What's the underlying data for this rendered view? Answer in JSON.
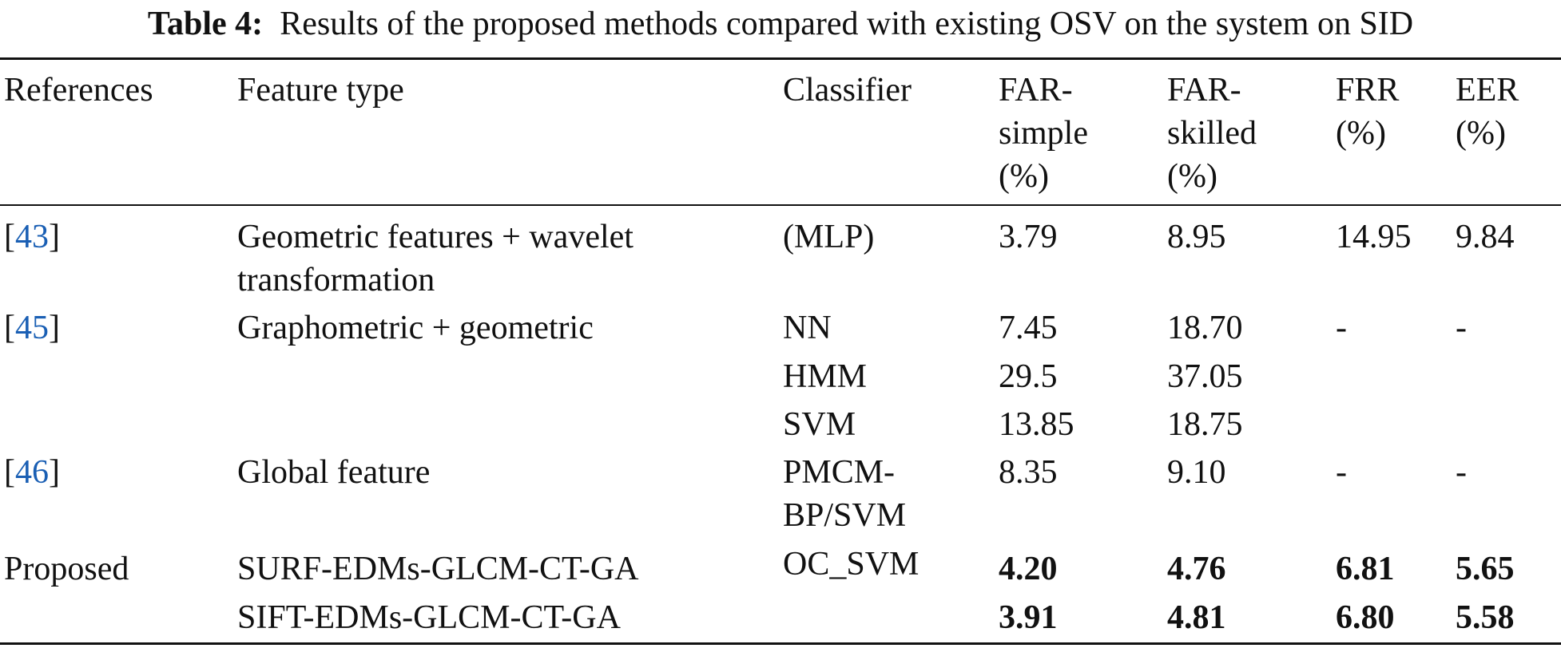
{
  "caption": {
    "label": "Table 4:",
    "text": "Results of the proposed methods compared with existing OSV on the system on SID"
  },
  "header": {
    "references": "References",
    "feature_type": "Feature type",
    "classifier": "Classifier",
    "far_simple": [
      "FAR-",
      "simple",
      "(%)"
    ],
    "far_skilled": [
      "FAR-",
      "skilled",
      "(%)"
    ],
    "frr": [
      "FRR",
      "(%)"
    ],
    "eer": [
      "EER",
      "(%)"
    ]
  },
  "rows": [
    {
      "ref": "43",
      "feature_type": [
        "Geometric features + wavelet",
        "transformation"
      ],
      "classifier": [
        "(MLP)"
      ],
      "far_simple": "3.79",
      "far_skilled": "8.95",
      "frr": "14.95",
      "eer": "9.84"
    },
    {
      "ref": "45",
      "feature_type": [
        "Graphometric + geometric"
      ],
      "classifier": [
        "NN"
      ],
      "far_simple": "7.45",
      "far_skilled": "18.70",
      "frr": "-",
      "eer": "-"
    },
    {
      "classifier": [
        "HMM"
      ],
      "far_simple": "29.5",
      "far_skilled": "37.05"
    },
    {
      "classifier": [
        "SVM"
      ],
      "far_simple": "13.85",
      "far_skilled": "18.75"
    },
    {
      "ref": "46",
      "feature_type": [
        "Global feature"
      ],
      "classifier": [
        "PMCM-",
        "BP/SVM"
      ],
      "far_simple": "8.35",
      "far_skilled": "9.10",
      "frr": "-",
      "eer": "-"
    },
    {
      "ref_text": "Proposed",
      "feature_type": [
        "SURF-EDMs-GLCM-CT-GA"
      ],
      "classifier": [
        "OC_SVM"
      ],
      "far_simple": "4.20",
      "far_skilled": "4.76",
      "frr": "6.81",
      "eer": "5.65"
    },
    {
      "feature_type": [
        "SIFT-EDMs-GLCM-CT-GA"
      ],
      "far_simple": "3.91",
      "far_skilled": "4.81",
      "frr": "6.80",
      "eer": "5.58"
    }
  ],
  "bracket_open": "[",
  "bracket_close": "]"
}
